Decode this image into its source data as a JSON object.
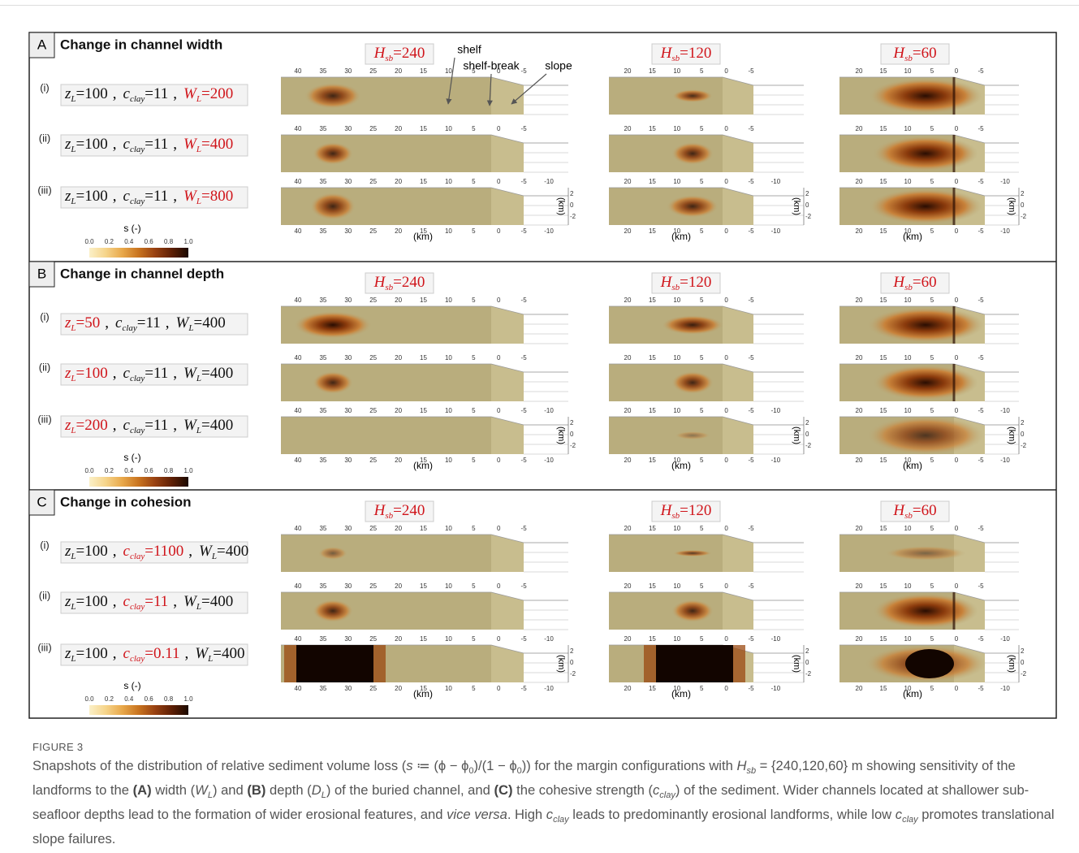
{
  "figure": {
    "separator": ",",
    "highlight_color": "#d0151b",
    "x_label": "(km)",
    "z_label": "(km)",
    "z_ticks": [
      "2",
      "0",
      "-2"
    ],
    "annotations": [
      "shelf",
      "shelf-break",
      "slope"
    ],
    "columns": [
      {
        "symbol": "H",
        "sub": "sb",
        "value": "=240",
        "ticks": [
          "40",
          "35",
          "30",
          "25",
          "20",
          "15",
          "10",
          "5",
          "0",
          "-5"
        ],
        "extra_tick": "-10"
      },
      {
        "symbol": "H",
        "sub": "sb",
        "value": "=120",
        "ticks": [
          "20",
          "15",
          "10",
          "5",
          "0",
          "-5"
        ],
        "extra_tick": "-10"
      },
      {
        "symbol": "H",
        "sub": "sb",
        "value": "=60",
        "ticks": [
          "20",
          "15",
          "10",
          "5",
          "0",
          "-5"
        ],
        "extra_tick": "-10"
      }
    ],
    "colorbar": {
      "label": "s (-)",
      "ticks": [
        "0.0",
        "0.2",
        "0.4",
        "0.6",
        "0.8",
        "1.0"
      ],
      "colors": [
        "#fbf0c8",
        "#f6d48a",
        "#e8a84a",
        "#c8731f",
        "#974011",
        "#5e1f05",
        "#1b0900"
      ]
    },
    "panels": [
      {
        "letter": "A",
        "title": "Change in channel width",
        "rows": [
          {
            "label": "(i)",
            "highlight": 2,
            "params": [
              {
                "symbol": "z",
                "sub": "L",
                "value": "=100"
              },
              {
                "symbol": "c",
                "sub": "clay",
                "value": "=11"
              },
              {
                "symbol": "W",
                "sub": "L",
                "value": "=200"
              }
            ]
          },
          {
            "label": "(ii)",
            "highlight": 2,
            "params": [
              {
                "symbol": "z",
                "sub": "L",
                "value": "=100"
              },
              {
                "symbol": "c",
                "sub": "clay",
                "value": "=11"
              },
              {
                "symbol": "W",
                "sub": "L",
                "value": "=400"
              }
            ]
          },
          {
            "label": "(iii)",
            "highlight": 2,
            "params": [
              {
                "symbol": "z",
                "sub": "L",
                "value": "=100"
              },
              {
                "symbol": "c",
                "sub": "clay",
                "value": "=11"
              },
              {
                "symbol": "W",
                "sub": "L",
                "value": "=800"
              }
            ]
          }
        ]
      },
      {
        "letter": "B",
        "title": "Change in channel depth",
        "rows": [
          {
            "label": "(i)",
            "highlight": 0,
            "params": [
              {
                "symbol": "z",
                "sub": "L",
                "value": "=50"
              },
              {
                "symbol": "c",
                "sub": "clay",
                "value": "=11"
              },
              {
                "symbol": "W",
                "sub": "L",
                "value": "=400"
              }
            ]
          },
          {
            "label": "(ii)",
            "highlight": 0,
            "params": [
              {
                "symbol": "z",
                "sub": "L",
                "value": "=100"
              },
              {
                "symbol": "c",
                "sub": "clay",
                "value": "=11"
              },
              {
                "symbol": "W",
                "sub": "L",
                "value": "=400"
              }
            ]
          },
          {
            "label": "(iii)",
            "highlight": 0,
            "params": [
              {
                "symbol": "z",
                "sub": "L",
                "value": "=200"
              },
              {
                "symbol": "c",
                "sub": "clay",
                "value": "=11"
              },
              {
                "symbol": "W",
                "sub": "L",
                "value": "=400"
              }
            ]
          }
        ]
      },
      {
        "letter": "C",
        "title": "Change in cohesion",
        "rows": [
          {
            "label": "(i)",
            "highlight": 1,
            "params": [
              {
                "symbol": "z",
                "sub": "L",
                "value": "=100"
              },
              {
                "symbol": "c",
                "sub": "clay",
                "value": "=1100"
              },
              {
                "symbol": "W",
                "sub": "L",
                "value": "=400"
              }
            ]
          },
          {
            "label": "(ii)",
            "highlight": 1,
            "params": [
              {
                "symbol": "z",
                "sub": "L",
                "value": "=100"
              },
              {
                "symbol": "c",
                "sub": "clay",
                "value": "=11"
              },
              {
                "symbol": "W",
                "sub": "L",
                "value": "=400"
              }
            ]
          },
          {
            "label": "(iii)",
            "highlight": 1,
            "params": [
              {
                "symbol": "z",
                "sub": "L",
                "value": "=100"
              },
              {
                "symbol": "c",
                "sub": "clay",
                "value": "=0.11"
              },
              {
                "symbol": "W",
                "sub": "L",
                "value": "=400"
              }
            ]
          }
        ]
      }
    ]
  },
  "caption": {
    "label": "FIGURE 3",
    "runs": [
      {
        "text": "Snapshots of the distribution of relative sediment volume loss ("
      },
      {
        "text": "s",
        "style": "italic"
      },
      {
        "text": " ≔ (ϕ − ϕ"
      },
      {
        "text": "0",
        "style": "sub"
      },
      {
        "text": ")/(1 − ϕ"
      },
      {
        "text": "0",
        "style": "sub"
      },
      {
        "text": ")) for the margin configurations with "
      },
      {
        "text": "H",
        "style": "italic"
      },
      {
        "text": "sb",
        "style": "sub-italic"
      },
      {
        "text": " = {240,120,60} m showing sensitivity of the landforms to the "
      },
      {
        "text": "(A)",
        "style": "bold"
      },
      {
        "text": " width ("
      },
      {
        "text": "W",
        "style": "italic"
      },
      {
        "text": "L",
        "style": "sub-italic"
      },
      {
        "text": ") and "
      },
      {
        "text": "(B)",
        "style": "bold"
      },
      {
        "text": " depth ("
      },
      {
        "text": "D",
        "style": "italic"
      },
      {
        "text": "L",
        "style": "sub-italic"
      },
      {
        "text": ") of the buried channel, and "
      },
      {
        "text": "(C)",
        "style": "bold"
      },
      {
        "text": " the cohesive strength ("
      },
      {
        "text": "c",
        "style": "italic"
      },
      {
        "text": "clay",
        "style": "sub-italic"
      },
      {
        "text": ") of the sediment. Wider channels located at shallower sub-seafloor depths lead to the formation of wider erosional features, and "
      },
      {
        "text": "vice versa",
        "style": "italic"
      },
      {
        "text": ". High "
      },
      {
        "text": "c",
        "style": "italic"
      },
      {
        "text": "clay",
        "style": "sub-italic"
      },
      {
        "text": " leads to predominantly erosional landforms, while low "
      },
      {
        "text": "c",
        "style": "italic"
      },
      {
        "text": "clay",
        "style": "sub-italic"
      },
      {
        "text": " promotes translational slope failures."
      }
    ]
  }
}
